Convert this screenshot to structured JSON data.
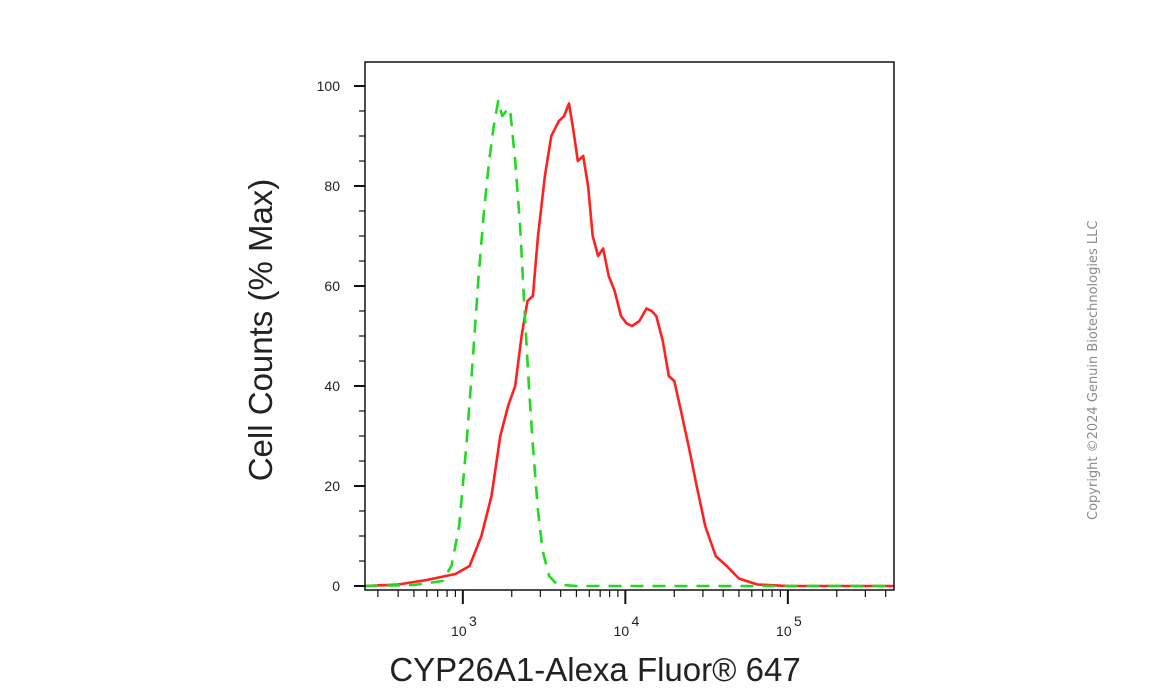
{
  "chart_data": {
    "type": "line",
    "title": "",
    "xlabel": "CYP26A1-Alexa Fluor® 647",
    "ylabel": "Cell Counts (% Max)",
    "x_scale": "log10",
    "xlim": [
      250,
      450000
    ],
    "ylim": [
      0,
      105
    ],
    "y_ticks": [
      0,
      20,
      40,
      60,
      80,
      100
    ],
    "x_major_ticks": [
      {
        "value": 1000,
        "base": "10",
        "exp": "3"
      },
      {
        "value": 10000,
        "base": "10",
        "exp": "4"
      },
      {
        "value": 100000,
        "base": "10",
        "exp": "5"
      }
    ],
    "legend": "none",
    "grid": false,
    "series": [
      {
        "color": "#ff2020",
        "style": "solid",
        "points": [
          [
            250,
            0
          ],
          [
            400,
            0.3
          ],
          [
            600,
            1.2
          ],
          [
            900,
            2.4
          ],
          [
            1100,
            4
          ],
          [
            1300,
            10
          ],
          [
            1500,
            18
          ],
          [
            1700,
            30
          ],
          [
            1900,
            36
          ],
          [
            2100,
            40
          ],
          [
            2300,
            50
          ],
          [
            2500,
            57
          ],
          [
            2700,
            58
          ],
          [
            2900,
            70
          ],
          [
            3200,
            82
          ],
          [
            3500,
            90
          ],
          [
            3900,
            93
          ],
          [
            4200,
            94
          ],
          [
            4500,
            96.5
          ],
          [
            4800,
            91
          ],
          [
            5100,
            85
          ],
          [
            5500,
            86
          ],
          [
            5900,
            80
          ],
          [
            6300,
            70
          ],
          [
            6800,
            66
          ],
          [
            7300,
            67.5
          ],
          [
            7900,
            62
          ],
          [
            8600,
            59
          ],
          [
            9400,
            54
          ],
          [
            10200,
            52.5
          ],
          [
            11000,
            52
          ],
          [
            12200,
            53
          ],
          [
            13500,
            55.5
          ],
          [
            14500,
            55
          ],
          [
            15500,
            54
          ],
          [
            17000,
            49
          ],
          [
            18500,
            42
          ],
          [
            20000,
            41
          ],
          [
            22000,
            35
          ],
          [
            24500,
            28
          ],
          [
            27500,
            20
          ],
          [
            31000,
            12
          ],
          [
            36000,
            6
          ],
          [
            42000,
            4
          ],
          [
            50000,
            1.5
          ],
          [
            65000,
            0.3
          ],
          [
            100000,
            0
          ],
          [
            450000,
            0
          ]
        ]
      },
      {
        "color": "#22d822",
        "style": "dashed",
        "points": [
          [
            250,
            0
          ],
          [
            500,
            0.2
          ],
          [
            750,
            1
          ],
          [
            850,
            4
          ],
          [
            950,
            12
          ],
          [
            1050,
            28
          ],
          [
            1150,
            45
          ],
          [
            1250,
            62
          ],
          [
            1350,
            75
          ],
          [
            1450,
            85
          ],
          [
            1550,
            92
          ],
          [
            1650,
            97
          ],
          [
            1750,
            94
          ],
          [
            1850,
            95
          ],
          [
            1950,
            95.5
          ],
          [
            2100,
            85
          ],
          [
            2250,
            72
          ],
          [
            2400,
            55
          ],
          [
            2550,
            40
          ],
          [
            2700,
            28
          ],
          [
            2900,
            15
          ],
          [
            3100,
            7
          ],
          [
            3400,
            2
          ],
          [
            3800,
            0.3
          ],
          [
            5000,
            0
          ],
          [
            450000,
            0
          ]
        ]
      }
    ]
  },
  "watermark": "Copyright ©2024 Genuin Biotechnologies LLC"
}
